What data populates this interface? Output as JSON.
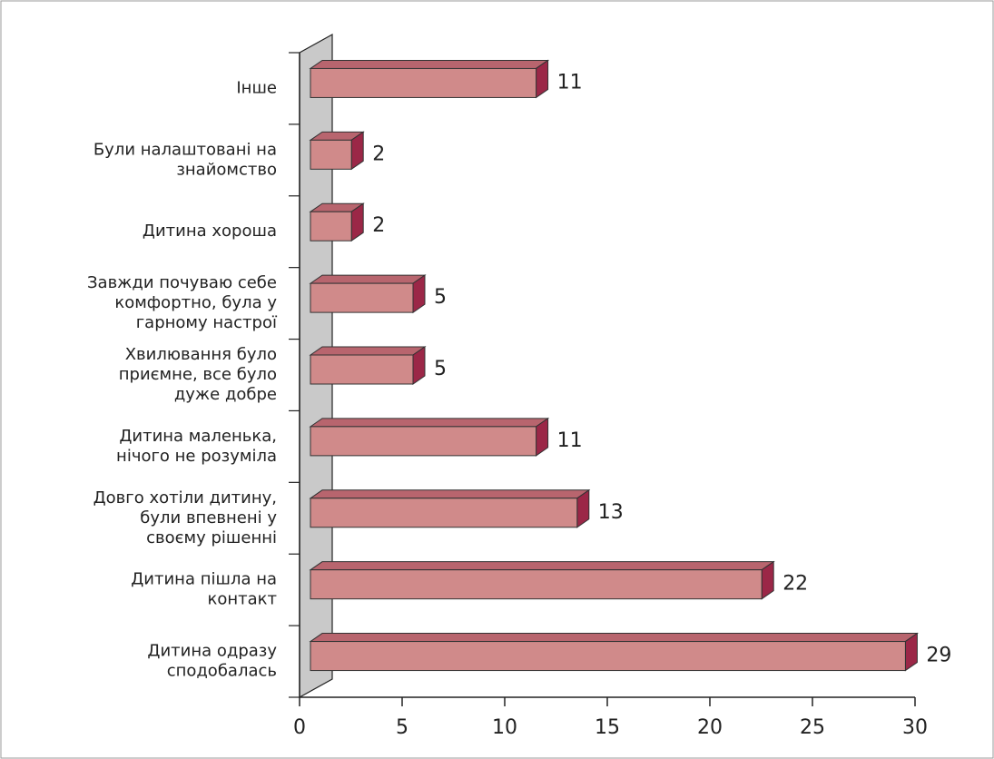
{
  "chart_data": {
    "type": "bar3d",
    "orientation": "horizontal",
    "categories": [
      "Інше",
      "Були налаштовані на\nзнайомство",
      "Дитина хороша",
      "Завжди почуваю себе\nкомфортно, була у\nгарному настрої",
      "Хвилювання було\nприємне, все було\nдуже добре",
      "Дитина маленька,\nнічого не розуміла",
      "Довго хотіли дитину,\nбули впевнені у\nсвоєму рішенні",
      "Дитина пішла на\nконтакт",
      "Дитина одразу\nсподобалась"
    ],
    "values": [
      11,
      2,
      2,
      5,
      5,
      11,
      13,
      22,
      29
    ],
    "color": "#d08a8a",
    "xlim": [
      0,
      30
    ],
    "xticks": [
      0,
      5,
      10,
      15,
      20,
      25,
      30
    ]
  }
}
